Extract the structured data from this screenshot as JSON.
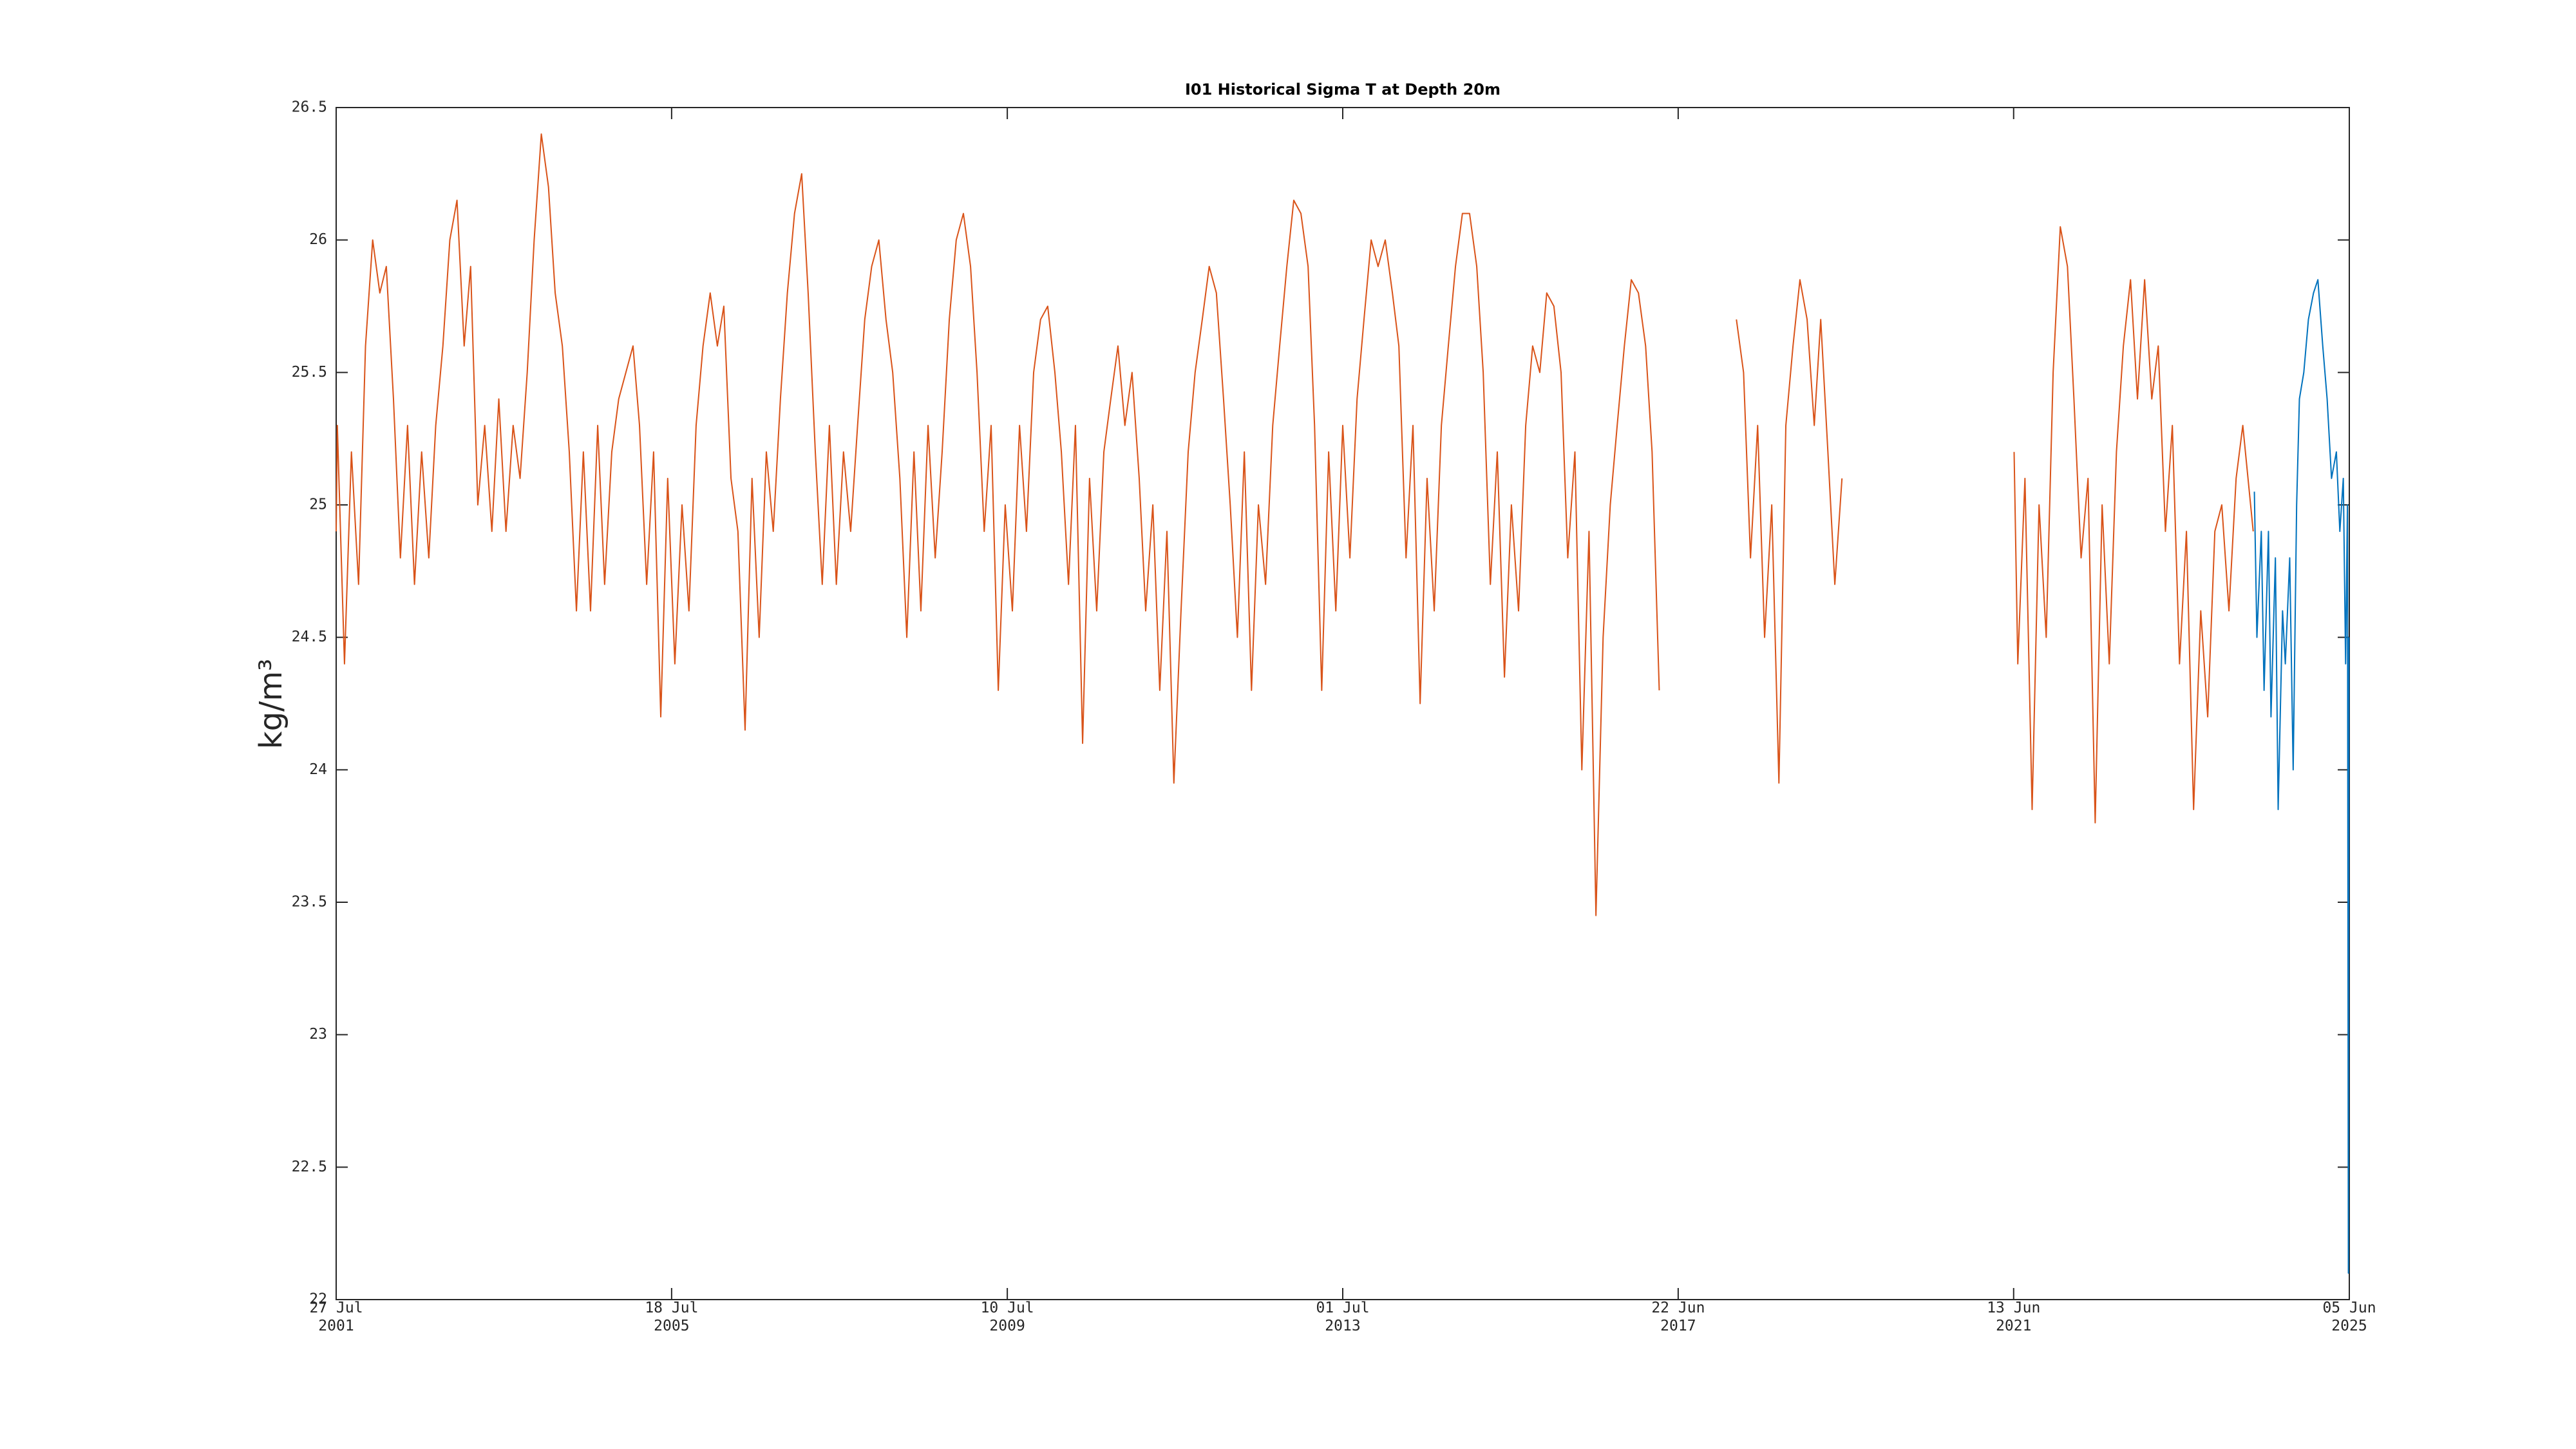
{
  "chart_data": {
    "type": "line",
    "title": "I01 Historical Sigma T at Depth 20m",
    "ylabel": "kg/m³",
    "xlim": [
      "2001-07-27",
      "2025-06-05"
    ],
    "ylim": [
      22,
      26.5
    ],
    "yticks": [
      22,
      22.5,
      23,
      23.5,
      24,
      24.5,
      25,
      25.5,
      26,
      26.5
    ],
    "xticks": [
      {
        "value": "2001-07-27",
        "label": [
          "27 Jul",
          "2001"
        ]
      },
      {
        "value": "2005-07-18",
        "label": [
          "18 Jul",
          "2005"
        ]
      },
      {
        "value": "2009-07-10",
        "label": [
          "10 Jul",
          "2009"
        ]
      },
      {
        "value": "2013-07-01",
        "label": [
          "01 Jul",
          "2013"
        ]
      },
      {
        "value": "2017-06-22",
        "label": [
          "22 Jun",
          "2017"
        ]
      },
      {
        "value": "2021-06-13",
        "label": [
          "13 Jun",
          "2021"
        ]
      },
      {
        "value": "2025-06-05",
        "label": [
          "05 Jun",
          "2025"
        ]
      }
    ],
    "series": [
      {
        "color": "#d95319",
        "x": [
          "2001-07-27",
          "2001-08-01",
          "2001-09-01",
          "2001-10-01",
          "2001-11-01",
          "2001-12-01",
          "2002-01-01",
          "2002-02-01",
          "2002-03-01",
          "2002-04-01",
          "2002-05-01",
          "2002-06-01",
          "2002-07-01",
          "2002-08-01",
          "2002-09-01",
          "2002-10-01",
          "2002-11-01",
          "2002-12-01",
          "2003-01-01",
          "2003-02-01",
          "2003-03-01",
          "2003-04-01",
          "2003-05-01",
          "2003-06-01",
          "2003-07-01",
          "2003-08-01",
          "2003-09-01",
          "2003-10-01",
          "2003-11-01",
          "2003-12-01",
          "2004-01-01",
          "2004-02-01",
          "2004-03-01",
          "2004-04-01",
          "2004-05-01",
          "2004-06-01",
          "2004-07-01",
          "2004-08-01",
          "2004-09-01",
          "2004-10-01",
          "2004-11-01",
          "2004-12-01",
          "2005-01-01",
          "2005-02-01",
          "2005-03-01",
          "2005-04-01",
          "2005-05-01",
          "2005-06-01",
          "2005-07-01",
          "2005-08-01",
          "2005-09-01",
          "2005-10-01",
          "2005-11-01",
          "2005-12-01",
          "2006-01-01",
          "2006-02-01",
          "2006-03-01",
          "2006-04-01",
          "2006-05-01",
          "2006-06-01",
          "2006-07-01",
          "2006-08-01",
          "2006-09-01",
          "2006-10-01",
          "2006-11-01",
          "2006-12-01",
          "2007-01-01",
          "2007-02-01",
          "2007-03-01",
          "2007-04-01",
          "2007-05-01",
          "2007-06-01",
          "2007-07-01",
          "2007-08-01",
          "2007-09-01",
          "2007-10-01",
          "2007-11-01",
          "2007-12-01",
          "2008-01-01",
          "2008-02-01",
          "2008-03-01",
          "2008-04-01",
          "2008-05-01",
          "2008-06-01",
          "2008-07-01",
          "2008-08-01",
          "2008-09-01",
          "2008-10-01",
          "2008-11-01",
          "2008-12-01",
          "2009-01-01",
          "2009-02-01",
          "2009-03-01",
          "2009-04-01",
          "2009-05-01",
          "2009-06-01",
          "2009-07-01",
          "2009-08-01",
          "2009-09-01",
          "2009-10-01",
          "2009-11-01",
          "2009-12-01",
          "2010-01-01",
          "2010-02-01",
          "2010-03-01",
          "2010-04-01",
          "2010-05-01",
          "2010-06-01",
          "2010-07-01",
          "2010-08-01",
          "2010-09-01",
          "2010-10-01",
          "2010-11-01",
          "2010-12-01",
          "2011-01-01",
          "2011-02-01",
          "2011-03-01",
          "2011-04-01",
          "2011-05-01",
          "2011-06-01",
          "2011-07-01",
          "2011-08-01",
          "2011-09-01",
          "2011-10-01",
          "2011-11-01",
          "2011-12-01",
          "2012-01-01",
          "2012-02-01",
          "2012-03-01",
          "2012-04-01",
          "2012-05-01",
          "2012-06-01",
          "2012-07-01",
          "2012-08-01",
          "2012-09-01",
          "2012-10-01",
          "2012-11-01",
          "2012-12-01",
          "2013-01-01",
          "2013-02-01",
          "2013-03-01",
          "2013-04-01",
          "2013-05-01",
          "2013-06-01",
          "2013-07-01",
          "2013-08-01",
          "2013-09-01",
          "2013-10-01",
          "2013-11-01",
          "2013-12-01",
          "2014-01-01",
          "2014-02-01",
          "2014-03-01",
          "2014-04-01",
          "2014-05-01",
          "2014-06-01",
          "2014-07-01",
          "2014-08-01",
          "2014-09-01",
          "2014-10-01",
          "2014-11-01",
          "2014-12-01",
          "2015-01-01",
          "2015-02-01",
          "2015-03-01",
          "2015-04-01",
          "2015-05-01",
          "2015-06-01",
          "2015-07-01",
          "2015-08-01",
          "2015-09-01",
          "2015-10-01",
          "2015-11-01",
          "2015-12-01",
          "2016-01-01",
          "2016-02-01",
          "2016-03-01",
          "2016-04-01",
          "2016-05-01",
          "2016-06-01",
          "2016-07-01",
          "2016-08-01",
          "2016-09-01",
          "2016-10-01",
          "2016-11-01",
          "2016-12-01",
          "2017-01-01",
          "2017-02-01",
          "2017-03-01",
          "2017-04-01",
          "2017-10-01",
          "2018-03-01",
          "2018-04-01",
          "2018-05-01",
          "2018-06-01",
          "2018-07-01",
          "2018-08-01",
          "2018-09-01",
          "2018-10-01",
          "2018-11-01",
          "2018-12-01",
          "2019-01-01",
          "2019-02-01",
          "2019-03-01",
          "2019-04-01",
          "2019-05-01",
          "2019-06-01",
          "2020-06-01",
          "2021-06-15",
          "2021-07-01",
          "2021-08-01",
          "2021-09-01",
          "2021-10-01",
          "2021-11-01",
          "2021-12-01",
          "2022-01-01",
          "2022-02-01",
          "2022-03-01",
          "2022-04-01",
          "2022-05-01",
          "2022-06-01",
          "2022-07-01",
          "2022-08-01",
          "2022-09-01",
          "2022-10-01",
          "2022-11-01",
          "2022-12-01",
          "2023-01-01",
          "2023-02-01",
          "2023-03-01",
          "2023-04-01",
          "2023-05-01",
          "2023-06-01",
          "2023-07-01",
          "2023-08-01",
          "2023-09-01",
          "2023-10-01",
          "2023-11-01",
          "2023-12-01",
          "2024-01-01",
          "2024-02-01",
          "2024-03-01",
          "2024-04-15"
        ],
        "values": [
          24.9,
          25.3,
          24.4,
          25.2,
          24.7,
          25.6,
          26.0,
          25.8,
          25.9,
          25.4,
          24.8,
          25.3,
          24.7,
          25.2,
          24.8,
          25.3,
          25.6,
          26.0,
          26.15,
          25.6,
          25.9,
          25.0,
          25.3,
          24.9,
          25.4,
          24.9,
          25.3,
          25.1,
          25.5,
          26.0,
          26.4,
          26.2,
          25.8,
          25.6,
          25.2,
          24.6,
          25.2,
          24.6,
          25.3,
          24.7,
          25.2,
          25.4,
          25.5,
          25.6,
          25.3,
          24.7,
          25.2,
          24.2,
          25.1,
          24.4,
          25.0,
          24.6,
          25.3,
          25.6,
          25.8,
          25.6,
          25.75,
          25.1,
          24.9,
          24.15,
          25.1,
          24.5,
          25.2,
          24.9,
          25.4,
          25.8,
          26.1,
          26.25,
          25.8,
          25.2,
          24.7,
          25.3,
          24.7,
          25.2,
          24.9,
          25.3,
          25.7,
          25.9,
          26.0,
          25.7,
          25.5,
          25.1,
          24.5,
          25.2,
          24.6,
          25.3,
          24.8,
          25.2,
          25.7,
          26.0,
          26.1,
          25.9,
          25.5,
          24.9,
          25.3,
          24.3,
          25.0,
          24.6,
          25.3,
          24.9,
          25.5,
          25.7,
          25.75,
          25.5,
          25.2,
          24.7,
          25.3,
          24.1,
          25.1,
          24.6,
          25.2,
          25.4,
          25.6,
          25.3,
          25.5,
          25.1,
          24.6,
          25.0,
          24.3,
          24.9,
          23.95,
          24.6,
          25.2,
          25.5,
          25.7,
          25.9,
          25.8,
          25.4,
          25.0,
          24.5,
          25.2,
          24.3,
          25.0,
          24.7,
          25.3,
          25.6,
          25.9,
          26.15,
          26.1,
          25.9,
          25.3,
          24.3,
          25.2,
          24.6,
          25.3,
          24.8,
          25.4,
          25.7,
          26.0,
          25.9,
          26.0,
          25.8,
          25.6,
          24.8,
          25.3,
          24.25,
          25.1,
          24.6,
          25.3,
          25.6,
          25.9,
          26.1,
          26.1,
          25.9,
          25.5,
          24.7,
          25.2,
          24.35,
          25.0,
          24.6,
          25.3,
          25.6,
          25.5,
          25.8,
          25.75,
          25.5,
          24.8,
          25.2,
          24.0,
          24.9,
          23.45,
          24.5,
          25.0,
          25.3,
          25.6,
          25.85,
          25.8,
          25.6,
          25.2,
          24.3,
          null,
          25.7,
          25.5,
          24.8,
          25.3,
          24.5,
          25.0,
          23.95,
          25.3,
          25.6,
          25.85,
          25.7,
          25.3,
          25.7,
          25.2,
          24.7,
          25.1,
          null,
          25.2,
          24.4,
          25.1,
          23.85,
          25.0,
          24.5,
          25.5,
          26.05,
          25.9,
          25.4,
          24.8,
          25.1,
          23.8,
          25.0,
          24.4,
          25.2,
          25.6,
          25.85,
          25.4,
          25.85,
          25.4,
          25.6,
          24.9,
          25.3,
          24.4,
          24.9,
          23.85,
          24.6,
          24.2,
          24.9,
          25.0,
          24.6,
          25.1,
          25.3,
          24.9
        ]
      },
      {
        "color": "#0072bd",
        "x": [
          "2024-04-20",
          "2024-05-01",
          "2024-05-20",
          "2024-06-01",
          "2024-06-20",
          "2024-07-01",
          "2024-07-20",
          "2024-08-01",
          "2024-08-20",
          "2024-09-01",
          "2024-09-20",
          "2024-10-05",
          "2024-10-20",
          "2024-11-01",
          "2024-11-20",
          "2024-12-10",
          "2025-01-01",
          "2025-01-20",
          "2025-02-10",
          "2025-03-01",
          "2025-03-20",
          "2025-04-10",
          "2025-04-25",
          "2025-05-10",
          "2025-05-20",
          "2025-05-28",
          "2025-06-01",
          "2025-06-03"
        ],
        "values": [
          25.05,
          24.5,
          24.9,
          24.3,
          24.9,
          24.2,
          24.8,
          23.85,
          24.6,
          24.4,
          24.8,
          24.0,
          25.0,
          25.4,
          25.5,
          25.7,
          25.8,
          25.85,
          25.6,
          25.4,
          25.1,
          25.2,
          24.9,
          25.1,
          24.4,
          25.0,
          22.1,
          24.5
        ]
      }
    ]
  }
}
